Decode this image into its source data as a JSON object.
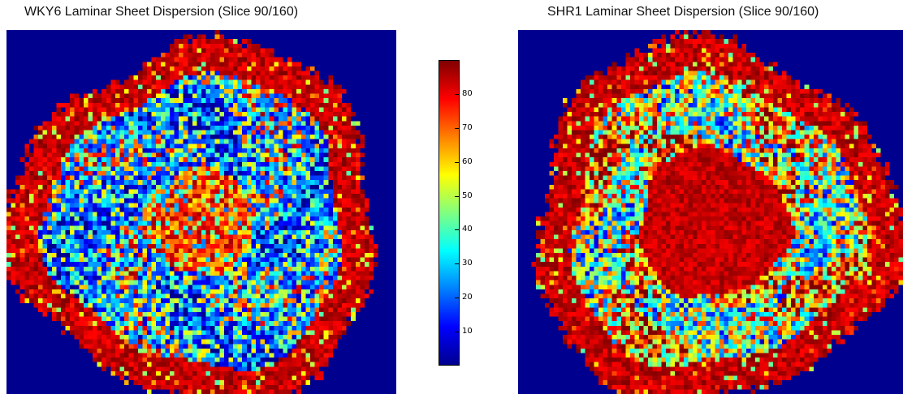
{
  "chart_data": [
    {
      "type": "heatmap",
      "title": "WKY6 Laminar Sheet Dispersion (Slice 90/160)",
      "grid_size": [
        86,
        80
      ],
      "value_range": [
        0,
        90
      ],
      "background_value": 0,
      "colormap": "jet",
      "regions": [
        "outer ring high (75-90)",
        "mid-wall mixed low (10-50)",
        "inner septum high (65-85)"
      ]
    },
    {
      "type": "heatmap",
      "title": "SHR1 Laminar Sheet Dispersion (Slice 90/160)",
      "grid_size": [
        86,
        80
      ],
      "value_range": [
        0,
        90
      ],
      "background_value": 0,
      "colormap": "jet",
      "regions": [
        "outer ring high (80-90)",
        "mid-wall ring mixed (15-70)",
        "central cavity very high (80-90)"
      ]
    }
  ],
  "colorbar": {
    "min": 0,
    "max": 90,
    "ticks": [
      "10",
      "20",
      "30",
      "40",
      "50",
      "60",
      "70",
      "80"
    ],
    "colors": [
      "#00008f",
      "#0000ff",
      "#0080ff",
      "#00ffff",
      "#80ff80",
      "#ffff00",
      "#ff8000",
      "#ff0000",
      "#800000"
    ]
  }
}
